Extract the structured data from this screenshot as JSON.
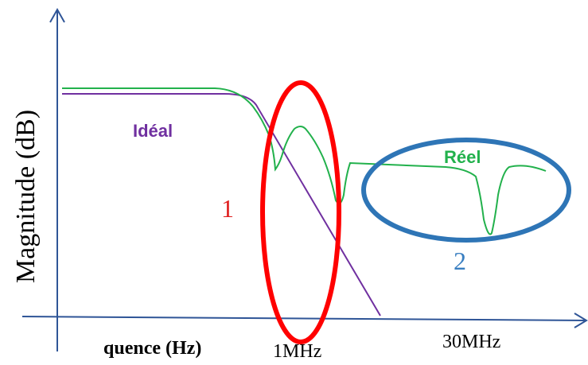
{
  "diagram": {
    "y_axis_label": "Magnitude (dB)",
    "x_axis_label": "quence (Hz)",
    "tick_1mhz": "1MHz",
    "tick_30mhz": "30MHz",
    "ideal_label": "Idéal",
    "real_label": "Réel",
    "region_1_label": "1",
    "region_2_label": "2"
  },
  "colors": {
    "axis": "#2f5597",
    "ideal": "#7030a0",
    "real": "#22b14c",
    "region_1": "#ff0000",
    "region_2": "#2e75b6",
    "label_1": "#e02020",
    "label_2": "#3a7fc1",
    "text": "#000000"
  }
}
